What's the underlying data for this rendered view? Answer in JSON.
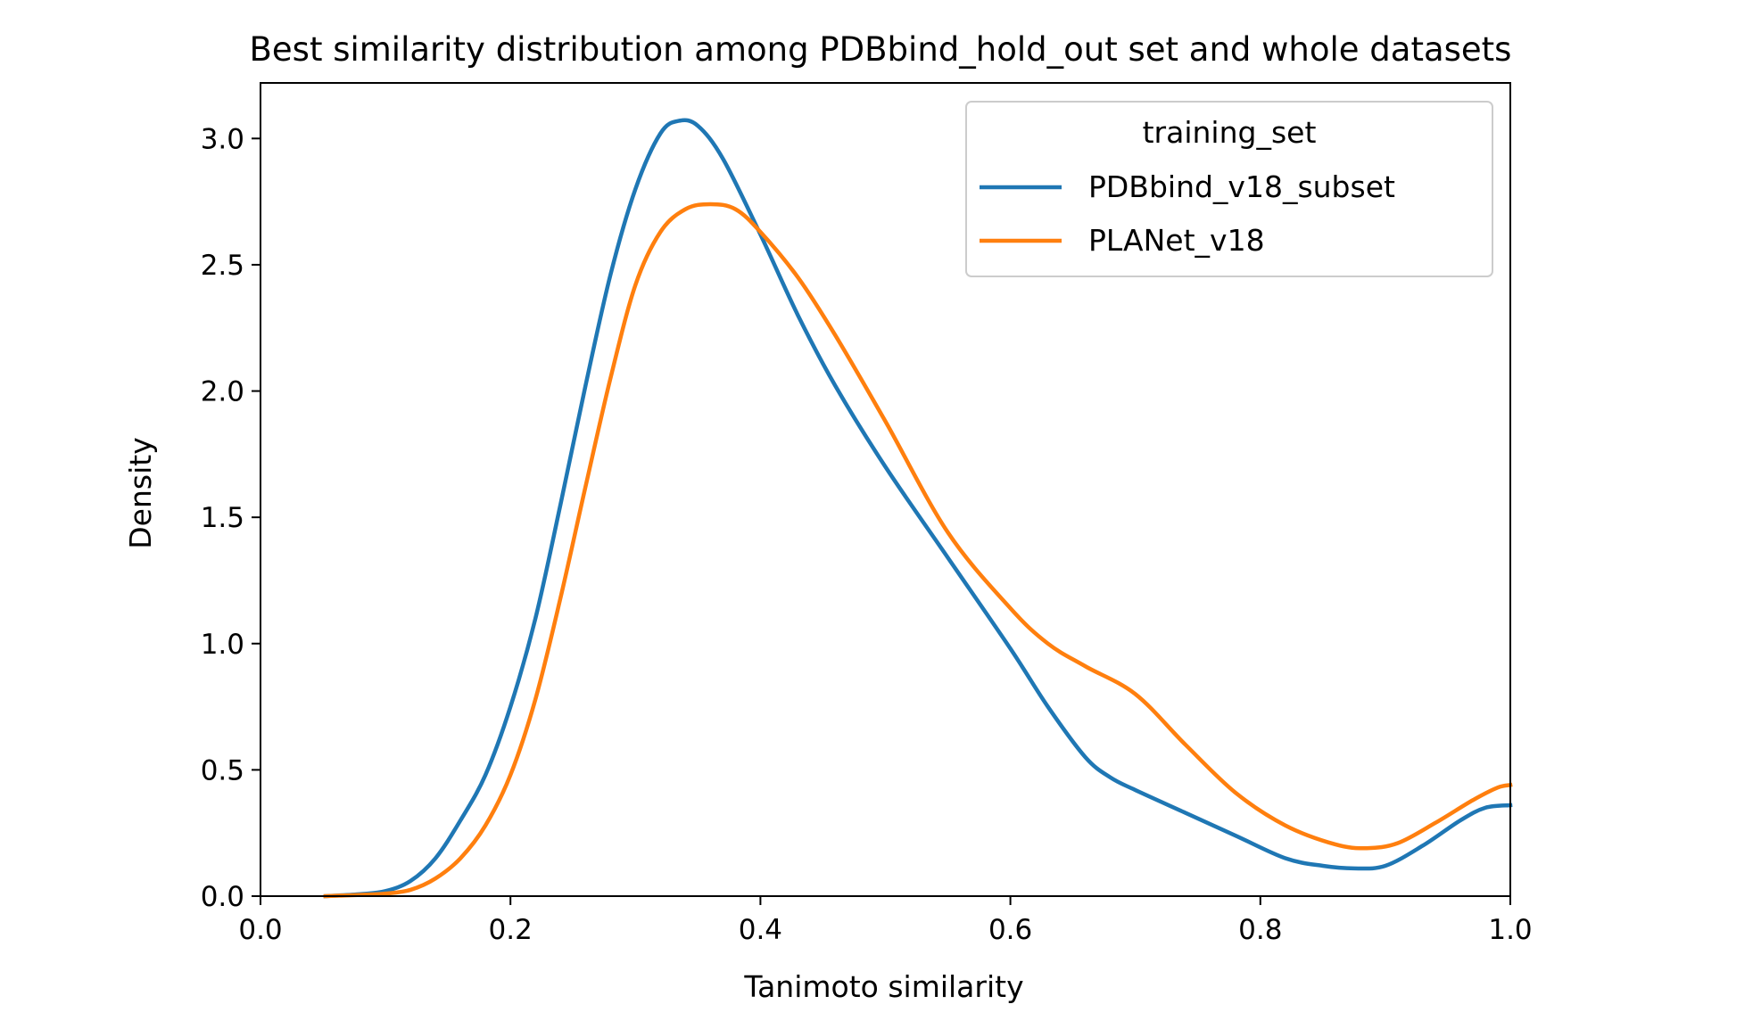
{
  "chart_data": {
    "type": "line",
    "title": "Best similarity distribution among PDBbind_hold_out set and whole datasets",
    "xlabel": "Tanimoto similarity",
    "ylabel": "Density",
    "xlim": [
      0.0,
      1.0
    ],
    "ylim": [
      0.0,
      3.22
    ],
    "xticks": [
      0.0,
      0.2,
      0.4,
      0.6,
      0.8,
      1.0
    ],
    "xtick_labels": [
      "0.0",
      "0.2",
      "0.4",
      "0.6",
      "0.8",
      "1.0"
    ],
    "yticks": [
      0.0,
      0.5,
      1.0,
      1.5,
      2.0,
      2.5,
      3.0
    ],
    "ytick_labels": [
      "0.0",
      "0.5",
      "1.0",
      "1.5",
      "2.0",
      "2.5",
      "3.0"
    ],
    "grid": false,
    "legend": {
      "title": "training_set",
      "placement": "top-right"
    },
    "series": [
      {
        "name": "PDBbind_v18_subset",
        "color": "#1f77b4",
        "points": [
          [
            0.052,
            0.0
          ],
          [
            0.08,
            0.008
          ],
          [
            0.1,
            0.02
          ],
          [
            0.12,
            0.06
          ],
          [
            0.14,
            0.15
          ],
          [
            0.16,
            0.3
          ],
          [
            0.18,
            0.48
          ],
          [
            0.2,
            0.75
          ],
          [
            0.22,
            1.1
          ],
          [
            0.24,
            1.55
          ],
          [
            0.26,
            2.02
          ],
          [
            0.28,
            2.46
          ],
          [
            0.3,
            2.8
          ],
          [
            0.32,
            3.02
          ],
          [
            0.335,
            3.07
          ],
          [
            0.35,
            3.05
          ],
          [
            0.37,
            2.92
          ],
          [
            0.4,
            2.62
          ],
          [
            0.43,
            2.3
          ],
          [
            0.46,
            2.02
          ],
          [
            0.5,
            1.7
          ],
          [
            0.55,
            1.34
          ],
          [
            0.6,
            0.98
          ],
          [
            0.63,
            0.75
          ],
          [
            0.66,
            0.55
          ],
          [
            0.68,
            0.47
          ],
          [
            0.7,
            0.42
          ],
          [
            0.74,
            0.33
          ],
          [
            0.78,
            0.24
          ],
          [
            0.82,
            0.15
          ],
          [
            0.85,
            0.12
          ],
          [
            0.875,
            0.11
          ],
          [
            0.9,
            0.12
          ],
          [
            0.93,
            0.2
          ],
          [
            0.96,
            0.3
          ],
          [
            0.98,
            0.35
          ],
          [
            1.0,
            0.36
          ]
        ]
      },
      {
        "name": "PLANet_v18",
        "color": "#ff7f0e",
        "points": [
          [
            0.052,
            0.0
          ],
          [
            0.08,
            0.005
          ],
          [
            0.1,
            0.01
          ],
          [
            0.12,
            0.025
          ],
          [
            0.14,
            0.07
          ],
          [
            0.16,
            0.15
          ],
          [
            0.18,
            0.28
          ],
          [
            0.2,
            0.48
          ],
          [
            0.22,
            0.78
          ],
          [
            0.24,
            1.18
          ],
          [
            0.26,
            1.62
          ],
          [
            0.28,
            2.05
          ],
          [
            0.3,
            2.42
          ],
          [
            0.32,
            2.63
          ],
          [
            0.34,
            2.72
          ],
          [
            0.36,
            2.74
          ],
          [
            0.38,
            2.72
          ],
          [
            0.4,
            2.63
          ],
          [
            0.43,
            2.45
          ],
          [
            0.46,
            2.22
          ],
          [
            0.5,
            1.88
          ],
          [
            0.55,
            1.44
          ],
          [
            0.6,
            1.14
          ],
          [
            0.63,
            1.0
          ],
          [
            0.66,
            0.91
          ],
          [
            0.7,
            0.8
          ],
          [
            0.74,
            0.6
          ],
          [
            0.78,
            0.41
          ],
          [
            0.82,
            0.28
          ],
          [
            0.86,
            0.205
          ],
          [
            0.885,
            0.19
          ],
          [
            0.91,
            0.21
          ],
          [
            0.94,
            0.29
          ],
          [
            0.97,
            0.38
          ],
          [
            0.99,
            0.43
          ],
          [
            1.0,
            0.44
          ]
        ]
      }
    ]
  }
}
